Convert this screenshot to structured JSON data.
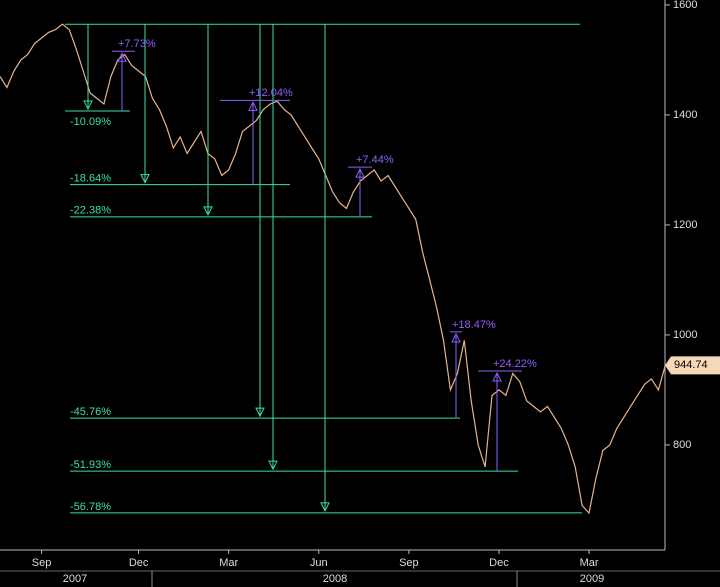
{
  "chart_data": {
    "type": "line",
    "series": [
      {
        "color": "#e8b48a",
        "values": [
          1470,
          1450,
          1480,
          1500,
          1510,
          1530,
          1540,
          1550,
          1555,
          1565,
          1555,
          1520,
          1480,
          1440,
          1430,
          1420,
          1470,
          1500,
          1510,
          1490,
          1480,
          1470,
          1430,
          1410,
          1380,
          1340,
          1360,
          1330,
          1350,
          1370,
          1330,
          1320,
          1290,
          1300,
          1330,
          1370,
          1380,
          1390,
          1410,
          1420,
          1425,
          1410,
          1400,
          1380,
          1360,
          1340,
          1320,
          1290,
          1260,
          1240,
          1230,
          1260,
          1280,
          1290,
          1300,
          1280,
          1290,
          1270,
          1250,
          1230,
          1210,
          1150,
          1100,
          1050,
          990,
          900,
          930,
          990,
          880,
          800,
          760,
          890,
          900,
          890,
          930,
          915,
          880,
          870,
          860,
          870,
          850,
          830,
          800,
          760,
          690,
          676,
          740,
          790,
          800,
          830,
          850,
          870,
          890,
          910,
          920,
          900,
          944.74
        ]
      }
    ],
    "ylim": [
      609,
      1609
    ],
    "yticks": [
      800,
      1000,
      1200,
      1400,
      1600
    ],
    "xticks": [
      {
        "value": 6,
        "label": "Sep"
      },
      {
        "value": 20,
        "label": "Dec"
      },
      {
        "value": 33,
        "label": "Mar"
      },
      {
        "value": 46,
        "label": "Jun"
      },
      {
        "value": 59,
        "label": "Sep"
      },
      {
        "value": 72,
        "label": "Dec"
      },
      {
        "value": 85,
        "label": "Mar"
      }
    ],
    "years": [
      2007,
      2008,
      2009
    ],
    "peak": 1565,
    "drawdowns": {
      "color": "#3de0a0",
      "values": [
        -10.09,
        -18.64,
        -22.38,
        -45.76,
        -51.93,
        -56.78
      ],
      "value_labels": [
        "-10.09%",
        "-18.64%",
        "-22.38%",
        "-45.76%",
        "-51.93%",
        "-56.78%"
      ]
    },
    "rallies": {
      "color": "#9060ff",
      "values": [
        7.73,
        12.04,
        7.44,
        18.47,
        24.22
      ],
      "value_labels": [
        "+7.73%",
        "+12.04%",
        "+7.44%",
        "+18.47%",
        "+24.22%"
      ]
    }
  }
}
